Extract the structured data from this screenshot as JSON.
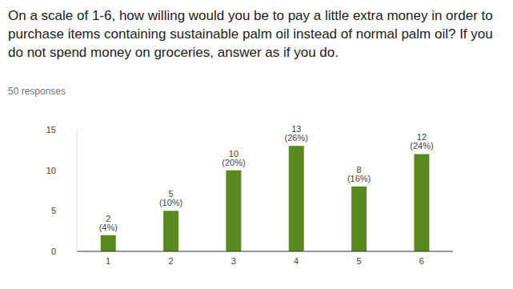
{
  "chart_data": {
    "type": "bar",
    "title": "On a scale of 1-6, how willing would you be to pay a little extra money in order to purchase items containing sustainable palm oil instead of normal palm oil? If you do not spend money on groceries, answer as if you do.",
    "subtitle": "50 responses",
    "categories": [
      "1",
      "2",
      "3",
      "4",
      "5",
      "6"
    ],
    "values": [
      2,
      5,
      10,
      13,
      8,
      12
    ],
    "value_labels": [
      "2 (4%)",
      "5 (10%)",
      "10 (20%)",
      "13 (26%)",
      "8 (16%)",
      "12 (24%)"
    ],
    "color": "#5a8a1f",
    "ylim": [
      0,
      15
    ],
    "yticks": [
      0,
      5,
      10,
      15
    ],
    "grid": false,
    "data_labels": true
  }
}
